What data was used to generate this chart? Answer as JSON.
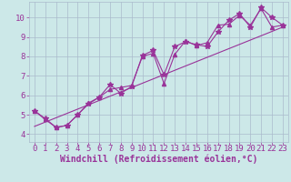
{
  "xlabel": "Windchill (Refroidissement éolien,°C)",
  "bg_color": "#cce8e8",
  "line_color": "#993399",
  "xlim": [
    -0.5,
    23.5
  ],
  "ylim": [
    3.6,
    10.8
  ],
  "xticks": [
    0,
    1,
    2,
    3,
    4,
    5,
    6,
    7,
    8,
    9,
    10,
    11,
    12,
    13,
    14,
    15,
    16,
    17,
    18,
    19,
    20,
    21,
    22,
    23
  ],
  "yticks": [
    4,
    5,
    6,
    7,
    8,
    9,
    10
  ],
  "series1_x": [
    0,
    1,
    2,
    3,
    4,
    5,
    6,
    7,
    8,
    9,
    10,
    11,
    12,
    13,
    14,
    15,
    16,
    17,
    18,
    19,
    20,
    21,
    22,
    23
  ],
  "series1_y": [
    5.2,
    4.8,
    4.35,
    4.45,
    5.0,
    5.55,
    5.9,
    6.55,
    6.1,
    6.45,
    8.05,
    8.3,
    7.05,
    8.5,
    8.75,
    8.6,
    8.5,
    9.25,
    9.85,
    10.2,
    9.5,
    10.5,
    10.0,
    9.6
  ],
  "series2_x": [
    0,
    1,
    2,
    3,
    4,
    5,
    6,
    7,
    8,
    9,
    10,
    11,
    12,
    13,
    14,
    15,
    16,
    17,
    18,
    19,
    20,
    21,
    22,
    23
  ],
  "series2_y": [
    5.2,
    4.75,
    4.35,
    4.45,
    5.0,
    5.6,
    5.9,
    6.3,
    6.4,
    6.5,
    8.0,
    8.15,
    6.6,
    8.1,
    8.8,
    8.55,
    8.7,
    9.6,
    9.65,
    10.1,
    9.6,
    10.45,
    9.5,
    9.6
  ],
  "trend_x": [
    0,
    23
  ],
  "trend_y": [
    4.4,
    9.5
  ],
  "grid_color": "#aabbcc",
  "font_color": "#993399",
  "tick_fontsize": 6.5,
  "xlabel_fontsize": 7
}
